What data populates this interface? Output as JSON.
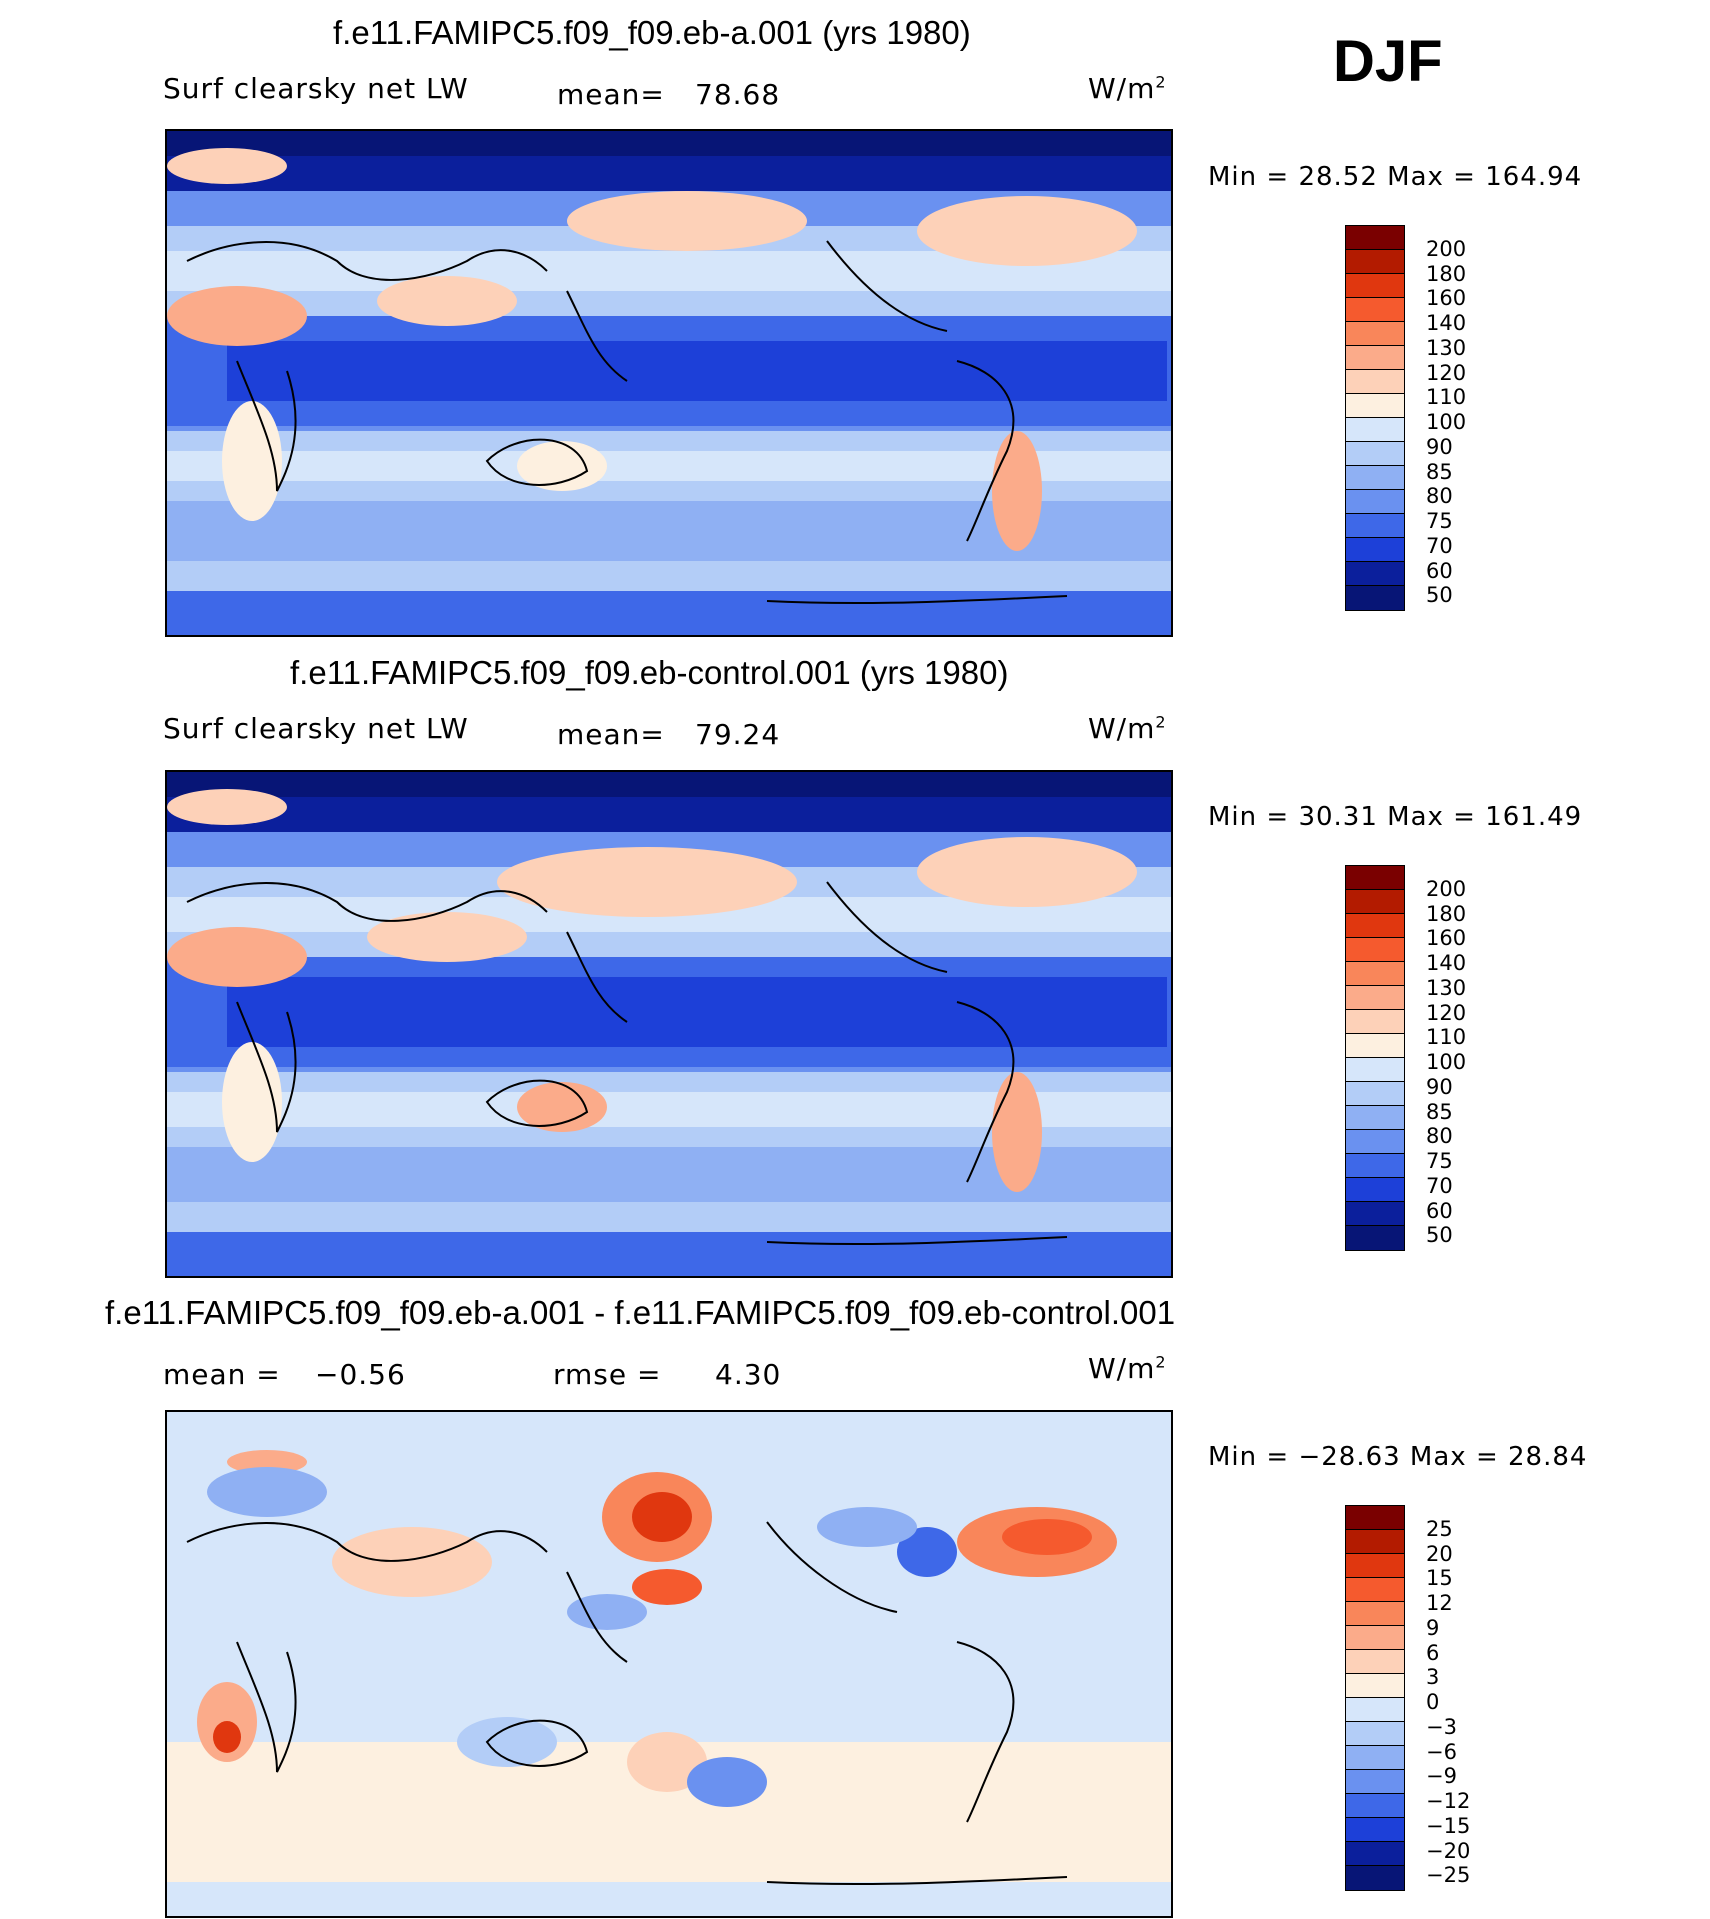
{
  "season": "DJF",
  "panels": [
    {
      "title": "f.e11.FAMIPC5.f09_f09.eb-a.001 (yrs 1980)",
      "variable": "Surf clearsky net LW",
      "stat_label": "mean=",
      "stat_value": "78.68",
      "units": "W/m",
      "units_exp": "2",
      "minmax": "Min =   28.52  Max =  164.94",
      "colorbar_labels": [
        "200",
        "180",
        "160",
        "140",
        "130",
        "120",
        "110",
        "100",
        "90",
        "85",
        "80",
        "75",
        "70",
        "60",
        "50"
      ]
    },
    {
      "title": "f.e11.FAMIPC5.f09_f09.eb-control.001 (yrs 1980)",
      "variable": "Surf clearsky net LW",
      "stat_label": "mean=",
      "stat_value": "79.24",
      "units": "W/m",
      "units_exp": "2",
      "minmax": "Min =   30.31  Max =  161.49",
      "colorbar_labels": [
        "200",
        "180",
        "160",
        "140",
        "130",
        "120",
        "110",
        "100",
        "90",
        "85",
        "80",
        "75",
        "70",
        "60",
        "50"
      ]
    },
    {
      "title": "f.e11.FAMIPC5.f09_f09.eb-a.001 - f.e11.FAMIPC5.f09_f09.eb-control.001",
      "stat_label": "mean =",
      "stat_value": "−0.56",
      "stat2_label": "rmse =",
      "stat2_value": "4.30",
      "units": "W/m",
      "units_exp": "2",
      "minmax": "Min = −28.63  Max =   28.84",
      "colorbar_labels": [
        "25",
        "20",
        "15",
        "12",
        "9",
        "6",
        "3",
        "0",
        "−3",
        "−6",
        "−9",
        "−12",
        "−15",
        "−20",
        "−25"
      ]
    }
  ],
  "colors": {
    "abs_scale": [
      "#7a0000",
      "#b31b00",
      "#e0370f",
      "#f55a2e",
      "#f9865a",
      "#fbab8a",
      "#fdd1b8",
      "#fdf0e0",
      "#d6e6fa",
      "#b3cdf7",
      "#8fb0f3",
      "#6a91f0",
      "#3e68e8",
      "#1d40d8",
      "#0b1f9c",
      "#071576"
    ],
    "diff_scale": [
      "#7a0000",
      "#b31b00",
      "#e0370f",
      "#f55a2e",
      "#f9865a",
      "#fbab8a",
      "#fdd1b8",
      "#fdf0e0",
      "#d6e6fa",
      "#b3cdf7",
      "#8fb0f3",
      "#6a91f0",
      "#3e68e8",
      "#1d40d8",
      "#0b1f9c",
      "#071576"
    ]
  }
}
